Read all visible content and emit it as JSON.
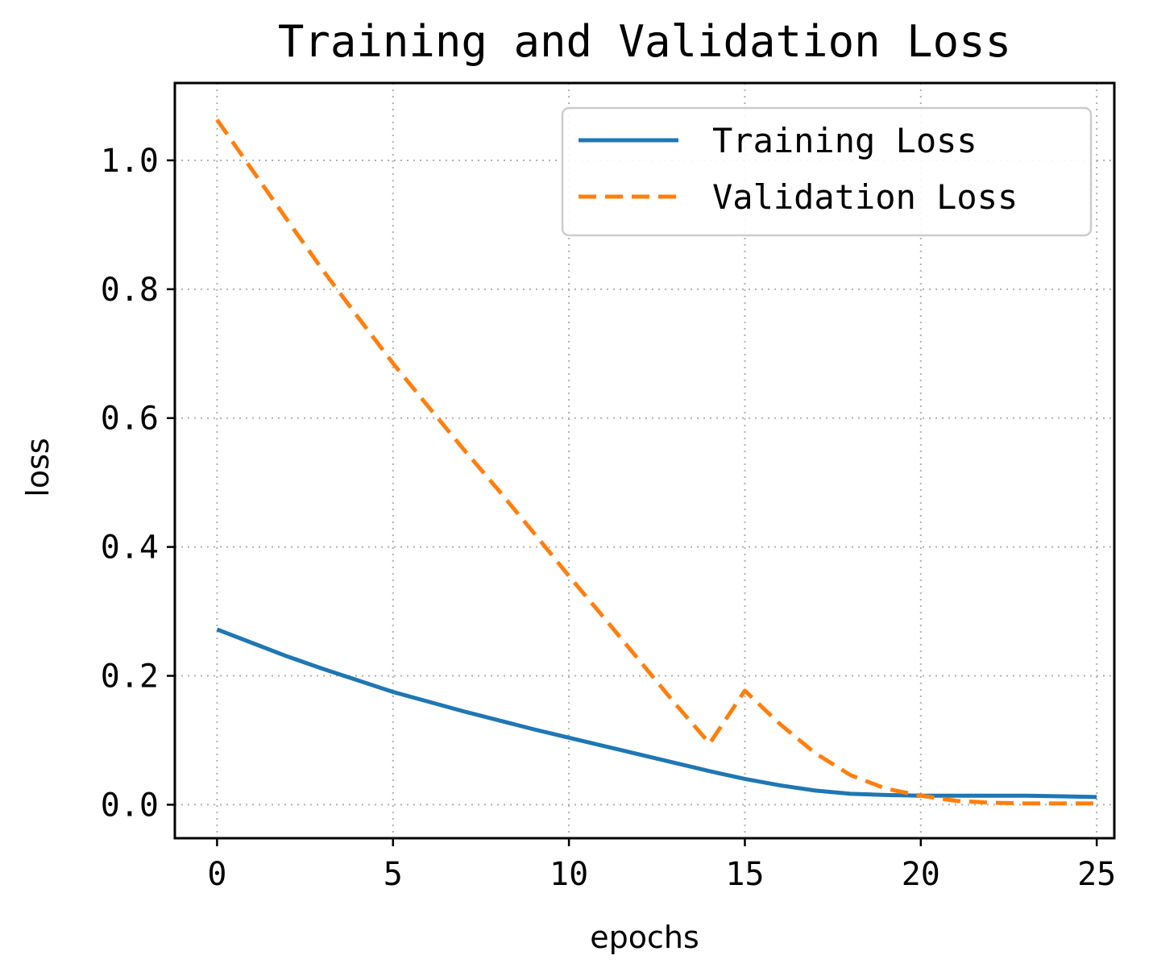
{
  "chart_data": {
    "type": "line",
    "title": "Training and Validation Loss",
    "xlabel": "epochs",
    "ylabel": "loss",
    "xlim": [
      -1.2,
      25.5
    ],
    "ylim": [
      -0.052,
      1.12
    ],
    "xticks": [
      0,
      5,
      10,
      15,
      20,
      25
    ],
    "xtick_labels": [
      "0",
      "5",
      "10",
      "15",
      "20",
      "25"
    ],
    "yticks": [
      0.0,
      0.2,
      0.4,
      0.6,
      0.8,
      1.0
    ],
    "ytick_labels": [
      "0.0",
      "0.2",
      "0.4",
      "0.6",
      "0.8",
      "1.0"
    ],
    "grid": true,
    "legend_position": "upper-right",
    "x": [
      0,
      1,
      2,
      3,
      4,
      5,
      6,
      7,
      8,
      9,
      10,
      11,
      12,
      13,
      14,
      15,
      16,
      17,
      18,
      19,
      20,
      21,
      22,
      23,
      24,
      25
    ],
    "series": [
      {
        "name": "Training Loss",
        "color": "#1f77b4",
        "linestyle": "solid",
        "values": [
          0.272,
          0.251,
          0.23,
          0.211,
          0.193,
          0.175,
          0.16,
          0.145,
          0.131,
          0.117,
          0.104,
          0.091,
          0.078,
          0.065,
          0.052,
          0.04,
          0.03,
          0.022,
          0.017,
          0.015,
          0.014,
          0.014,
          0.014,
          0.014,
          0.013,
          0.012
        ]
      },
      {
        "name": "Validation Loss",
        "color": "#ff7f0e",
        "linestyle": "dashed",
        "values": [
          1.063,
          0.985,
          0.907,
          0.83,
          0.757,
          0.685,
          0.618,
          0.552,
          0.488,
          0.422,
          0.355,
          0.29,
          0.224,
          0.158,
          0.095,
          0.177,
          0.125,
          0.08,
          0.046,
          0.025,
          0.014,
          0.006,
          0.003,
          0.002,
          0.002,
          0.002
        ]
      }
    ]
  }
}
